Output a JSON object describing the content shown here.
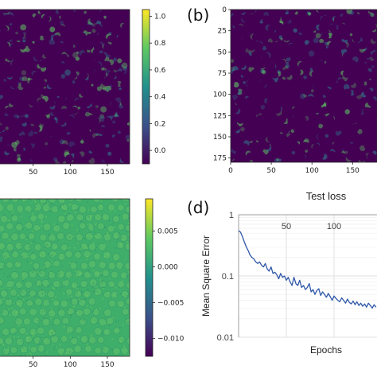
{
  "colors": {
    "dark": "#440154",
    "field_lo": "#2a5f8e",
    "field_mid": "#2f7f8e",
    "field_hi": "#5ec962",
    "residual_base": "#3fae6a",
    "line": "#2e57a8",
    "grid": "#d9d9d9"
  },
  "chart_data": [
    {
      "id": "a",
      "type": "heatmap",
      "label": "",
      "x_ticks": [
        "50",
        "100",
        "150"
      ],
      "y_ticks": [],
      "colorbar": {
        "ticks": [
          "1.0",
          "0.8",
          "0.6",
          "0.4",
          "0.2",
          "0.0"
        ],
        "range": [
          -0.1,
          1.05
        ]
      }
    },
    {
      "id": "b",
      "type": "heatmap",
      "label": "(b)",
      "x_ticks": [
        "0",
        "50",
        "100",
        "150"
      ],
      "y_ticks": [
        "0",
        "25",
        "50",
        "75",
        "100",
        "125",
        "150",
        "175"
      ]
    },
    {
      "id": "c",
      "type": "heatmap",
      "label": "",
      "x_ticks": [
        "50",
        "100",
        "150"
      ],
      "colorbar": {
        "ticks": [
          "0.005",
          "0.000",
          "−0.005",
          "−0.010"
        ],
        "range": [
          -0.0125,
          0.0095
        ]
      }
    },
    {
      "id": "d",
      "type": "line",
      "label": "(d)",
      "title": "Test loss",
      "xlabel": "Epochs",
      "ylabel": "Mean Square Error",
      "x_ticks": [
        "50",
        "100"
      ],
      "y_ticks": [
        "1",
        "0.1",
        "0.01"
      ],
      "y_scale": "log",
      "xlim": [
        0,
        145
      ],
      "ylim": [
        0.01,
        1
      ],
      "series": [
        {
          "x": [
            0,
            2,
            4,
            6,
            8,
            10,
            12,
            14,
            16,
            18,
            20,
            22,
            24,
            26,
            28,
            30,
            32,
            34,
            36,
            38,
            40,
            42,
            44,
            46,
            48,
            50,
            52,
            54,
            56,
            58,
            60,
            62,
            64,
            66,
            68,
            70,
            72,
            74,
            76,
            78,
            80,
            82,
            84,
            86,
            88,
            90,
            92,
            94,
            96,
            98,
            100,
            102,
            104,
            106,
            108,
            110,
            112,
            114,
            116,
            118,
            120,
            122,
            124,
            126,
            128,
            130,
            132,
            134,
            136,
            138,
            140,
            142,
            144
          ],
          "y": [
            0.55,
            0.52,
            0.44,
            0.36,
            0.3,
            0.26,
            0.22,
            0.2,
            0.19,
            0.17,
            0.16,
            0.17,
            0.15,
            0.14,
            0.16,
            0.13,
            0.12,
            0.14,
            0.11,
            0.115,
            0.105,
            0.09,
            0.11,
            0.095,
            0.1,
            0.085,
            0.095,
            0.08,
            0.07,
            0.095,
            0.075,
            0.07,
            0.085,
            0.065,
            0.07,
            0.06,
            0.065,
            0.075,
            0.055,
            0.06,
            0.05,
            0.058,
            0.062,
            0.048,
            0.055,
            0.05,
            0.045,
            0.052,
            0.046,
            0.04,
            0.047,
            0.043,
            0.04,
            0.038,
            0.044,
            0.04,
            0.036,
            0.042,
            0.037,
            0.035,
            0.039,
            0.034,
            0.038,
            0.033,
            0.036,
            0.032,
            0.035,
            0.031,
            0.036,
            0.033,
            0.03,
            0.034,
            0.031
          ]
        }
      ]
    }
  ]
}
